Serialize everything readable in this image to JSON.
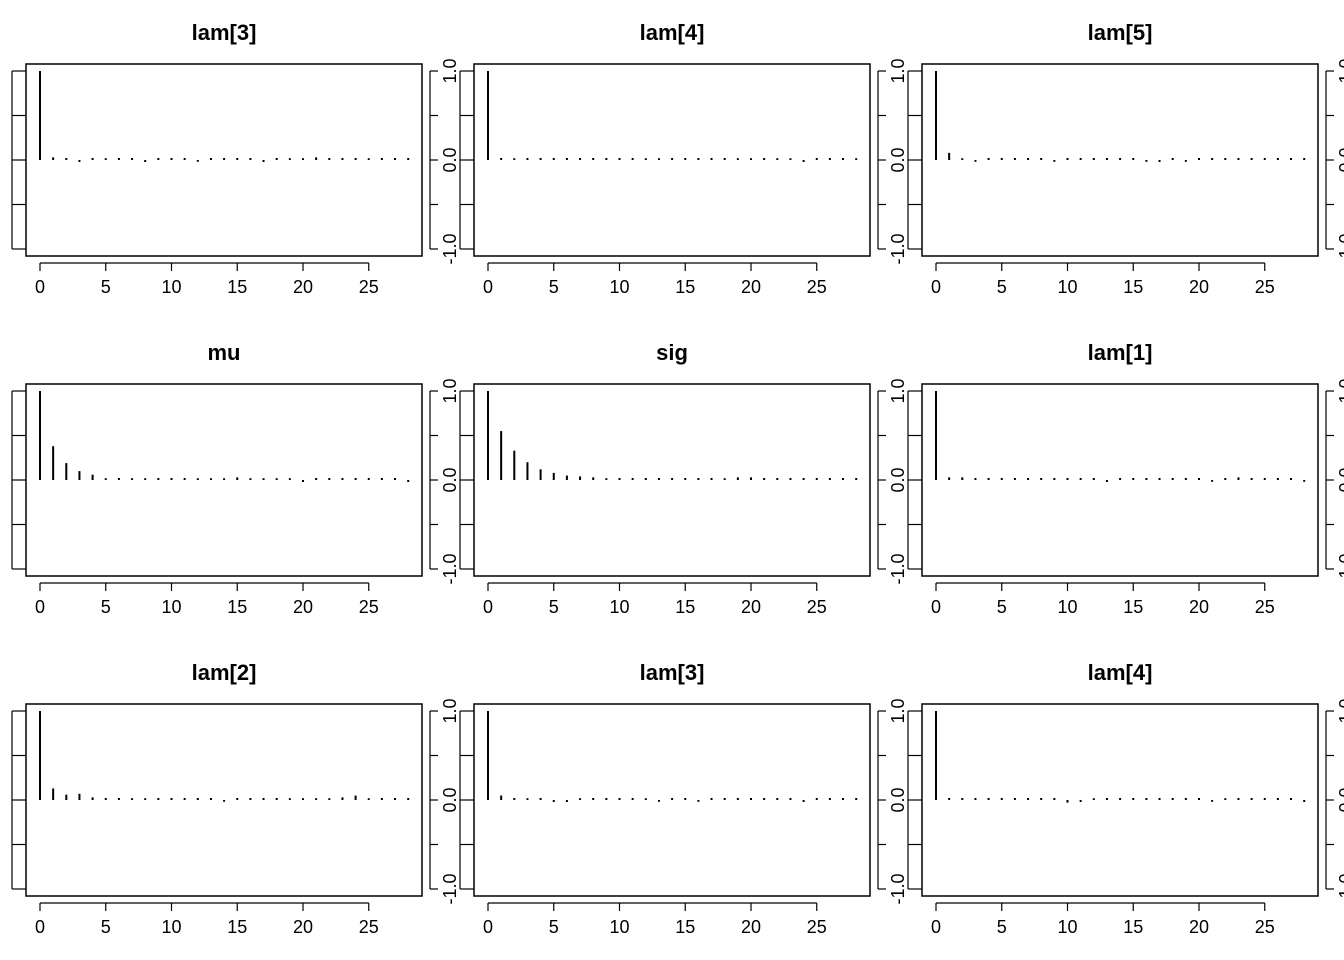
{
  "chart_data": [
    {
      "type": "bar",
      "title": "lam[3]",
      "xlim": [
        0,
        28
      ],
      "ylim": [
        -1,
        1
      ],
      "x_ticks": [
        "0",
        "5",
        "10",
        "15",
        "20",
        "25"
      ],
      "y_ticks": [
        "-1.0",
        "0.0",
        "1.0"
      ],
      "x": [
        0,
        1,
        2,
        3,
        4,
        5,
        6,
        7,
        8,
        9,
        10,
        11,
        12,
        13,
        14,
        15,
        16,
        17,
        18,
        19,
        20,
        21,
        22,
        23,
        24,
        25,
        26,
        27,
        28
      ],
      "values": [
        1.0,
        0.03,
        0.01,
        -0.01,
        0.01,
        0.02,
        0.01,
        0.01,
        -0.01,
        0.01,
        0.01,
        0.01,
        -0.02,
        0.01,
        0.01,
        0.01,
        0.01,
        -0.01,
        0.01,
        0.02,
        0.02,
        0.03,
        0.01,
        0.01,
        0.01,
        0.02,
        0.01,
        0.01,
        0.01
      ]
    },
    {
      "type": "bar",
      "title": "lam[4]",
      "xlim": [
        0,
        28
      ],
      "ylim": [
        -1,
        1
      ],
      "x_ticks": [
        "0",
        "5",
        "10",
        "15",
        "20",
        "25"
      ],
      "y_ticks": [
        "-1.0",
        "0.0",
        "1.0"
      ],
      "x": [
        0,
        1,
        2,
        3,
        4,
        5,
        6,
        7,
        8,
        9,
        10,
        11,
        12,
        13,
        14,
        15,
        16,
        17,
        18,
        19,
        20,
        21,
        22,
        23,
        24,
        25,
        26,
        27,
        28
      ],
      "values": [
        1.0,
        0.01,
        0.02,
        0.01,
        0.01,
        0.01,
        0.01,
        0.01,
        0.01,
        0.01,
        0.01,
        0.01,
        0.02,
        0.02,
        0.01,
        0.01,
        0.01,
        0.01,
        0.01,
        0.02,
        0.02,
        0.01,
        0.02,
        0.02,
        -0.01,
        0.01,
        0.01,
        0.01,
        0.02
      ]
    },
    {
      "type": "bar",
      "title": "lam[5]",
      "xlim": [
        0,
        28
      ],
      "ylim": [
        -1,
        1
      ],
      "x_ticks": [
        "0",
        "5",
        "10",
        "15",
        "20",
        "25"
      ],
      "y_ticks": [
        "-1.0",
        "0.0",
        "1.0"
      ],
      "x": [
        0,
        1,
        2,
        3,
        4,
        5,
        6,
        7,
        8,
        9,
        10,
        11,
        12,
        13,
        14,
        15,
        16,
        17,
        18,
        19,
        20,
        21,
        22,
        23,
        24,
        25,
        26,
        27,
        28
      ],
      "values": [
        1.0,
        0.08,
        0.02,
        -0.02,
        0.01,
        0.01,
        0.01,
        0.01,
        0.01,
        -0.02,
        0.01,
        0.01,
        0.01,
        0.01,
        0.01,
        0.01,
        -0.02,
        -0.01,
        0.01,
        -0.02,
        0.01,
        0.01,
        0.01,
        0.01,
        0.01,
        0.01,
        0.01,
        0.01,
        0.01
      ]
    },
    {
      "type": "bar",
      "title": "mu",
      "xlim": [
        0,
        28
      ],
      "ylim": [
        -1,
        1
      ],
      "x_ticks": [
        "0",
        "5",
        "10",
        "15",
        "20",
        "25"
      ],
      "y_ticks": [
        "-1.0",
        "0.0",
        "1.0"
      ],
      "x": [
        0,
        1,
        2,
        3,
        4,
        5,
        6,
        7,
        8,
        9,
        10,
        11,
        12,
        13,
        14,
        15,
        16,
        17,
        18,
        19,
        20,
        21,
        22,
        23,
        24,
        25,
        26,
        27,
        28
      ],
      "values": [
        1.0,
        0.38,
        0.19,
        0.1,
        0.06,
        0.02,
        0.01,
        0.02,
        0.02,
        0.01,
        0.01,
        0.01,
        0.02,
        0.02,
        0.02,
        0.03,
        0.02,
        0.02,
        0.02,
        0.02,
        -0.01,
        0.01,
        0.01,
        0.01,
        0.01,
        0.01,
        0.01,
        0.01,
        -0.01
      ]
    },
    {
      "type": "bar",
      "title": "sig",
      "xlim": [
        0,
        28
      ],
      "ylim": [
        -1,
        1
      ],
      "x_ticks": [
        "0",
        "5",
        "10",
        "15",
        "20",
        "25"
      ],
      "y_ticks": [
        "-1.0",
        "0.0",
        "1.0"
      ],
      "x": [
        0,
        1,
        2,
        3,
        4,
        5,
        6,
        7,
        8,
        9,
        10,
        11,
        12,
        13,
        14,
        15,
        16,
        17,
        18,
        19,
        20,
        21,
        22,
        23,
        24,
        25,
        26,
        27,
        28
      ],
      "values": [
        1.0,
        0.55,
        0.33,
        0.2,
        0.12,
        0.08,
        0.05,
        0.04,
        0.03,
        0.02,
        0.01,
        0.01,
        0.01,
        0.01,
        0.01,
        0.01,
        0.01,
        0.01,
        0.02,
        0.03,
        0.03,
        0.01,
        0.01,
        0.01,
        0.01,
        0.01,
        0.01,
        0.01,
        0.01
      ]
    },
    {
      "type": "bar",
      "title": "lam[1]",
      "xlim": [
        0,
        28
      ],
      "ylim": [
        -1,
        1
      ],
      "x_ticks": [
        "0",
        "5",
        "10",
        "15",
        "20",
        "25"
      ],
      "y_ticks": [
        "-1.0",
        "0.0",
        "1.0"
      ],
      "x": [
        0,
        1,
        2,
        3,
        4,
        5,
        6,
        7,
        8,
        9,
        10,
        11,
        12,
        13,
        14,
        15,
        16,
        17,
        18,
        19,
        20,
        21,
        22,
        23,
        24,
        25,
        26,
        27,
        28
      ],
      "values": [
        1.0,
        0.03,
        0.03,
        0.01,
        0.01,
        0.01,
        0.01,
        0.01,
        0.01,
        0.01,
        0.01,
        0.01,
        0.01,
        -0.01,
        0.01,
        0.01,
        0.01,
        0.01,
        0.01,
        0.01,
        0.01,
        -0.02,
        0.01,
        0.03,
        0.01,
        0.01,
        0.01,
        0.01,
        -0.02
      ]
    },
    {
      "type": "bar",
      "title": "lam[2]",
      "xlim": [
        0,
        28
      ],
      "ylim": [
        -1,
        1
      ],
      "x_ticks": [
        "0",
        "5",
        "10",
        "15",
        "20",
        "25"
      ],
      "y_ticks": [
        "-1.0",
        "0.0",
        "1.0"
      ],
      "x": [
        0,
        1,
        2,
        3,
        4,
        5,
        6,
        7,
        8,
        9,
        10,
        11,
        12,
        13,
        14,
        15,
        16,
        17,
        18,
        19,
        20,
        21,
        22,
        23,
        24,
        25,
        26,
        27,
        28
      ],
      "values": [
        1.0,
        0.13,
        0.06,
        0.07,
        0.03,
        0.01,
        0.01,
        0.02,
        0.02,
        0.01,
        0.01,
        0.01,
        0.01,
        0.01,
        -0.02,
        0.01,
        0.01,
        0.01,
        0.01,
        0.02,
        0.02,
        0.02,
        0.02,
        0.03,
        0.05,
        0.02,
        0.01,
        0.01,
        0.01
      ]
    },
    {
      "type": "bar",
      "title": "lam[3]",
      "xlim": [
        0,
        28
      ],
      "ylim": [
        -1,
        1
      ],
      "x_ticks": [
        "0",
        "5",
        "10",
        "15",
        "20",
        "25"
      ],
      "y_ticks": [
        "-1.0",
        "0.0",
        "1.0"
      ],
      "x": [
        0,
        1,
        2,
        3,
        4,
        5,
        6,
        7,
        8,
        9,
        10,
        11,
        12,
        13,
        14,
        15,
        16,
        17,
        18,
        19,
        20,
        21,
        22,
        23,
        24,
        25,
        26,
        27,
        28
      ],
      "values": [
        1.0,
        0.05,
        0.01,
        0.02,
        0.01,
        -0.01,
        -0.01,
        0.02,
        0.01,
        0.01,
        0.01,
        0.01,
        0.02,
        -0.02,
        0.01,
        0.01,
        -0.02,
        0.01,
        0.01,
        0.01,
        0.01,
        0.01,
        0.01,
        0.01,
        -0.01,
        0.01,
        0.01,
        0.01,
        0.01
      ]
    },
    {
      "type": "bar",
      "title": "lam[4]",
      "xlim": [
        0,
        28
      ],
      "ylim": [
        -1,
        1
      ],
      "x_ticks": [
        "0",
        "5",
        "10",
        "15",
        "20",
        "25"
      ],
      "y_ticks": [
        "-1.0",
        "0.0",
        "1.0"
      ],
      "x": [
        0,
        1,
        2,
        3,
        4,
        5,
        6,
        7,
        8,
        9,
        10,
        11,
        12,
        13,
        14,
        15,
        16,
        17,
        18,
        19,
        20,
        21,
        22,
        23,
        24,
        25,
        26,
        27,
        28
      ],
      "values": [
        1.0,
        0.01,
        0.01,
        0.01,
        0.01,
        0.01,
        0.01,
        0.01,
        0.01,
        0.01,
        -0.03,
        -0.01,
        0.02,
        0.01,
        0.01,
        0.01,
        0.01,
        0.01,
        0.01,
        0.01,
        0.01,
        -0.02,
        0.02,
        0.01,
        0.01,
        0.01,
        0.01,
        0.01,
        -0.01
      ]
    }
  ]
}
